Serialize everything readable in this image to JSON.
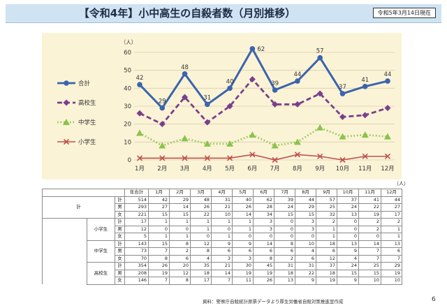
{
  "header": {
    "title": "【令和4年】小中高生の自殺者数（月別推移）",
    "date_badge": "令和5年3月14日現在"
  },
  "chart_data": {
    "type": "line",
    "ylabel": "（人）",
    "ylim": [
      0,
      60
    ],
    "yticks": [
      0,
      10,
      20,
      30,
      40,
      50,
      60
    ],
    "categories": [
      "1月",
      "2月",
      "3月",
      "4月",
      "5月",
      "6月",
      "7月",
      "8月",
      "9月",
      "10月",
      "11月",
      "12月"
    ],
    "legend_position": "left",
    "series": [
      {
        "name": "合計",
        "values": [
          42,
          29,
          48,
          31,
          40,
          62,
          39,
          44,
          57,
          37,
          41,
          44
        ],
        "color": "#3a64ad",
        "style": "solid",
        "marker": "circle",
        "labels": true
      },
      {
        "name": "高校生",
        "values": [
          26,
          20,
          35,
          21,
          30,
          45,
          31,
          31,
          37,
          24,
          25,
          29
        ],
        "color": "#7b3f8c",
        "style": "dashed",
        "marker": "diamond",
        "labels": false
      },
      {
        "name": "中学生",
        "values": [
          15,
          8,
          12,
          9,
          9,
          14,
          8,
          10,
          18,
          13,
          14,
          13
        ],
        "color": "#8bc34a",
        "style": "dotted",
        "marker": "triangle",
        "labels": false
      },
      {
        "name": "小学生",
        "values": [
          1,
          1,
          1,
          1,
          1,
          3,
          0,
          3,
          2,
          0,
          2,
          2
        ],
        "color": "#c0504d",
        "style": "solid",
        "marker": "x",
        "labels": false
      }
    ]
  },
  "table": {
    "unit": "（人）",
    "headers": [
      "年合計",
      "1月",
      "2月",
      "3月",
      "4月",
      "5月",
      "6月",
      "7月",
      "8月",
      "9月",
      "10月",
      "11月",
      "12月"
    ],
    "groups": [
      {
        "name": "計",
        "rows": [
          {
            "label": "計",
            "values": [
              "514",
              "42",
              "29",
              "48",
              "31",
              "40",
              "62",
              "39",
              "44",
              "57",
              "37",
              "41",
              "44"
            ]
          },
          {
            "label": "男",
            "values": [
              "293",
              "27",
              "14",
              "26",
              "21",
              "26",
              "28",
              "24",
              "29",
              "25",
              "24",
              "22",
              "27"
            ]
          },
          {
            "label": "女",
            "values": [
              "221",
              "15",
              "15",
              "22",
              "10",
              "14",
              "34",
              "15",
              "15",
              "32",
              "13",
              "19",
              "17"
            ]
          }
        ]
      },
      {
        "name": "小学生",
        "rows": [
          {
            "label": "計",
            "values": [
              "17",
              "1",
              "1",
              "1",
              "1",
              "1",
              "3",
              "0",
              "3",
              "2",
              "0",
              "2",
              "2"
            ]
          },
          {
            "label": "男",
            "values": [
              "12",
              "0",
              "0",
              "1",
              "0",
              "1",
              "3",
              "0",
              "3",
              "1",
              "0",
              "2",
              "1"
            ]
          },
          {
            "label": "女",
            "values": [
              "5",
              "1",
              "1",
              "0",
              "1",
              "0",
              "0",
              "0",
              "0",
              "1",
              "0",
              "0",
              "1"
            ]
          }
        ]
      },
      {
        "name": "中学生",
        "rows": [
          {
            "label": "計",
            "values": [
              "143",
              "15",
              "8",
              "12",
              "9",
              "9",
              "14",
              "8",
              "10",
              "18",
              "13",
              "14",
              "13"
            ]
          },
          {
            "label": "男",
            "values": [
              "73",
              "7",
              "2",
              "8",
              "6",
              "6",
              "6",
              "6",
              "4",
              "6",
              "9",
              "7",
              "6"
            ]
          },
          {
            "label": "女",
            "values": [
              "70",
              "8",
              "6",
              "4",
              "3",
              "3",
              "8",
              "2",
              "6",
              "12",
              "4",
              "7",
              "7"
            ]
          }
        ]
      },
      {
        "name": "高校生",
        "rows": [
          {
            "label": "計",
            "values": [
              "354",
              "26",
              "20",
              "35",
              "21",
              "30",
              "45",
              "31",
              "31",
              "37",
              "24",
              "25",
              "29"
            ]
          },
          {
            "label": "男",
            "values": [
              "208",
              "19",
              "12",
              "18",
              "14",
              "19",
              "19",
              "18",
              "22",
              "18",
              "15",
              "15",
              "19"
            ]
          },
          {
            "label": "女",
            "values": [
              "146",
              "7",
              "8",
              "17",
              "7",
              "11",
              "26",
              "13",
              "9",
              "19",
              "9",
              "10",
              "10"
            ]
          }
        ]
      }
    ]
  },
  "footer": {
    "source": "資料：警察庁自殺統計原票データより厚生労働省自殺対策推進室作成",
    "page_number": "6"
  }
}
